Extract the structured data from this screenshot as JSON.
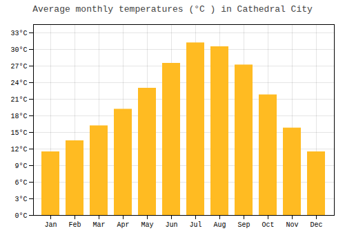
{
  "chart_data": {
    "type": "bar",
    "title": "Average monthly temperatures (°C ) in Cathedral City",
    "categories": [
      "Jan",
      "Feb",
      "Mar",
      "Apr",
      "May",
      "Jun",
      "Jul",
      "Aug",
      "Sep",
      "Oct",
      "Nov",
      "Dec"
    ],
    "values": [
      11.5,
      13.5,
      16.2,
      19.2,
      23.0,
      27.5,
      31.2,
      30.5,
      27.2,
      21.8,
      15.8,
      11.5
    ],
    "color": "#FFBB22",
    "ylim": [
      0,
      34.5
    ],
    "yticks": [
      {
        "value": 0,
        "label": "0°C"
      },
      {
        "value": 3,
        "label": "3°C"
      },
      {
        "value": 6,
        "label": "6°C"
      },
      {
        "value": 9,
        "label": "9°C"
      },
      {
        "value": 12,
        "label": "12°C"
      },
      {
        "value": 15,
        "label": "15°C"
      },
      {
        "value": 18,
        "label": "18°C"
      },
      {
        "value": 21,
        "label": "21°C"
      },
      {
        "value": 24,
        "label": "24°C"
      },
      {
        "value": 27,
        "label": "27°C"
      },
      {
        "value": 30,
        "label": "30°C"
      },
      {
        "value": 33,
        "label": "33°C"
      }
    ],
    "grid": true
  }
}
